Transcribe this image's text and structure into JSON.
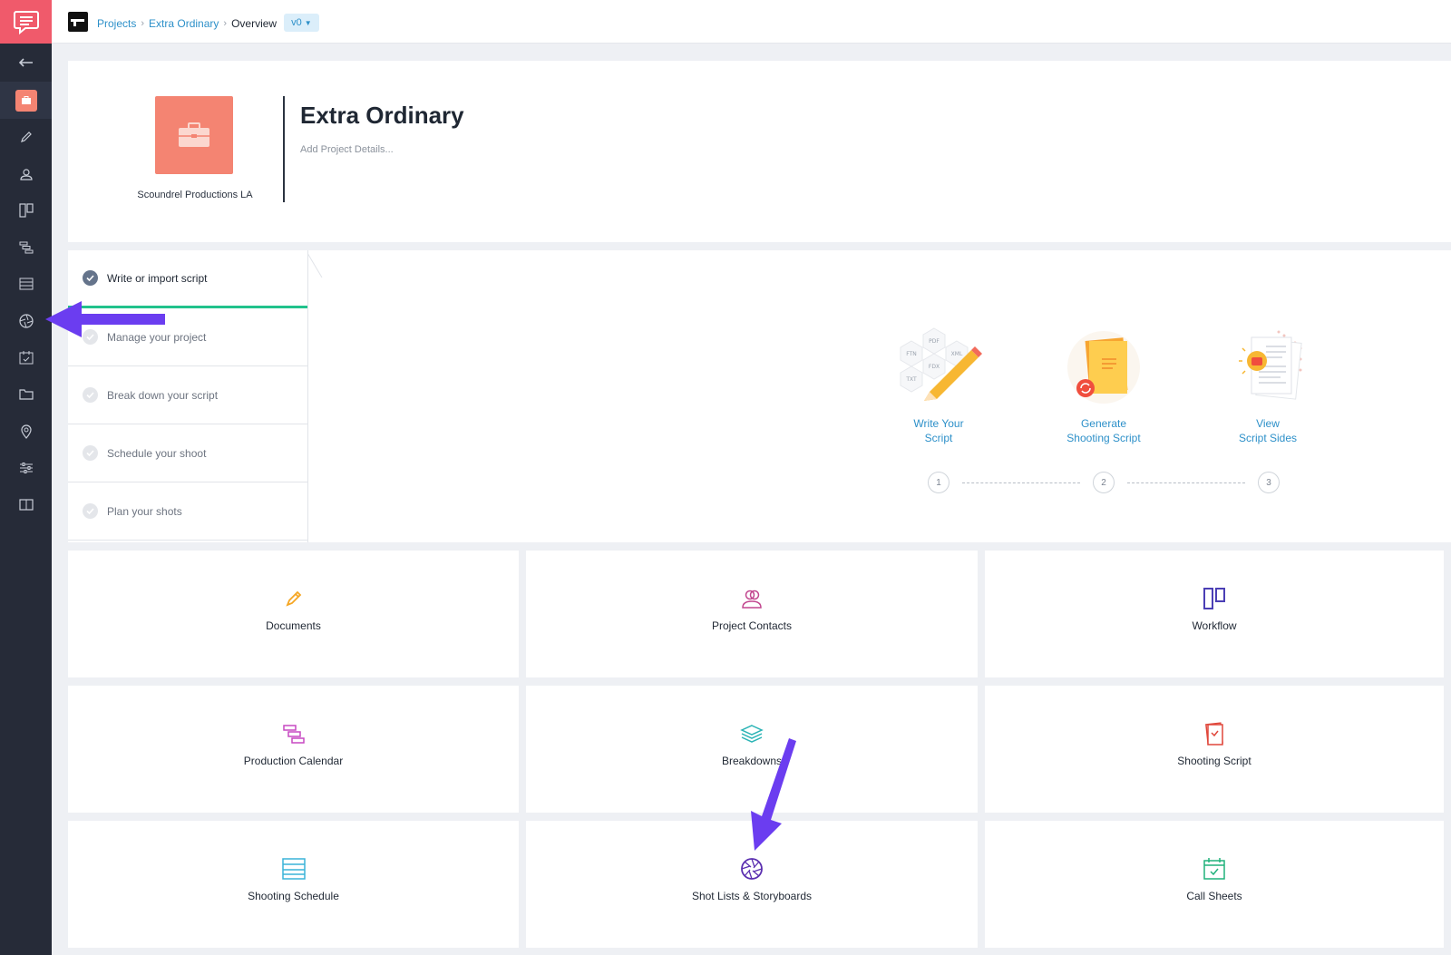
{
  "breadcrumb": {
    "projects": "Projects",
    "project": "Extra Ordinary",
    "current": "Overview",
    "version": "v0"
  },
  "project": {
    "title": "Extra Ordinary",
    "details_placeholder": "Add Project Details...",
    "company": "Scoundrel Productions LA"
  },
  "sidebar": {
    "items": [
      {
        "icon": "back-arrow-icon"
      },
      {
        "icon": "project-overview-icon"
      },
      {
        "icon": "pencil-icon"
      },
      {
        "icon": "contacts-icon"
      },
      {
        "icon": "workflow-icon"
      },
      {
        "icon": "calendar-gantt-icon"
      },
      {
        "icon": "stripboard-icon"
      },
      {
        "icon": "aperture-icon"
      },
      {
        "icon": "call-sheet-icon"
      },
      {
        "icon": "folder-icon"
      },
      {
        "icon": "location-pin-icon"
      },
      {
        "icon": "settings-sliders-icon"
      },
      {
        "icon": "book-icon"
      }
    ]
  },
  "onboarding": {
    "steps": [
      {
        "label": "Write or import script",
        "active": true
      },
      {
        "label": "Manage your project",
        "active": false
      },
      {
        "label": "Break down your script",
        "active": false
      },
      {
        "label": "Schedule your shoot",
        "active": false
      },
      {
        "label": "Plan your shots",
        "active": false
      }
    ],
    "features": [
      {
        "line1": "Write Your",
        "line2": "Script",
        "number": "1",
        "formats": [
          "PDF",
          "FTN",
          "XML",
          "FDX",
          "TXT"
        ]
      },
      {
        "line1": "Generate",
        "line2": "Shooting Script",
        "number": "2"
      },
      {
        "line1": "View",
        "line2": "Script Sides",
        "number": "3"
      }
    ]
  },
  "tiles": [
    {
      "label": "Documents",
      "icon": "pencil-icon",
      "color": "#f5a623"
    },
    {
      "label": "Project Contacts",
      "icon": "contacts-icon",
      "color": "#c2478f"
    },
    {
      "label": "Workflow",
      "icon": "workflow-icon",
      "color": "#4b3fb5"
    },
    {
      "label": "Production Calendar",
      "icon": "calendar-gantt-icon",
      "color": "#c748c2"
    },
    {
      "label": "Breakdowns",
      "icon": "layers-icon",
      "color": "#29b3b5"
    },
    {
      "label": "Shooting Script",
      "icon": "script-icon",
      "color": "#e0463a"
    },
    {
      "label": "Shooting Schedule",
      "icon": "stripboard-icon",
      "color": "#3ab3d8"
    },
    {
      "label": "Shot Lists & Storyboards",
      "icon": "aperture-icon",
      "color": "#5b2fb0"
    },
    {
      "label": "Call Sheets",
      "icon": "call-sheet-icon",
      "color": "#21b27c"
    }
  ],
  "colors": {
    "sidebar_bg": "#262b38",
    "logo_bg": "#f05a6b",
    "accent_link": "#2d90c9",
    "project_icon_bg": "#f48472",
    "progress_green": "#21c28c",
    "annotation_arrow": "#6b3df0"
  }
}
